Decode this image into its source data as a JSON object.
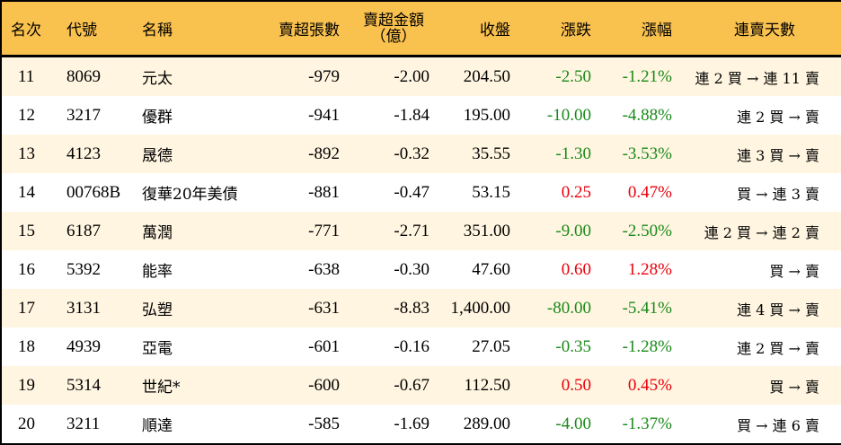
{
  "colors": {
    "header_bg": "#F9C14E",
    "row_odd_bg": "#FFF5E0",
    "row_even_bg": "#FFFFFF",
    "up": "#E8000B",
    "down": "#1A8A1A"
  },
  "header": {
    "rank": "名次",
    "code": "代號",
    "name": "名稱",
    "net_sell_lots": "賣超張數",
    "net_sell_amount_line1": "賣超金額",
    "net_sell_amount_line2": "（億）",
    "close": "收盤",
    "change": "漲跌",
    "change_pct": "漲幅",
    "streak": "連賣天數"
  },
  "rows": [
    {
      "rank": "11",
      "code": "8069",
      "name": "元太",
      "lots": "-979",
      "amount": "-2.00",
      "close": "204.50",
      "change": "-2.50",
      "pct": "-1.21%",
      "dir": "down",
      "streak": "連 2 買 → 連 11 賣"
    },
    {
      "rank": "12",
      "code": "3217",
      "name": "優群",
      "lots": "-941",
      "amount": "-1.84",
      "close": "195.00",
      "change": "-10.00",
      "pct": "-4.88%",
      "dir": "down",
      "streak": "連 2 買 → 賣"
    },
    {
      "rank": "13",
      "code": "4123",
      "name": "晟德",
      "lots": "-892",
      "amount": "-0.32",
      "close": "35.55",
      "change": "-1.30",
      "pct": "-3.53%",
      "dir": "down",
      "streak": "連 3 買 → 賣"
    },
    {
      "rank": "14",
      "code": "00768B",
      "name": "復華20年美債",
      "lots": "-881",
      "amount": "-0.47",
      "close": "53.15",
      "change": "0.25",
      "pct": "0.47%",
      "dir": "up",
      "streak": "買 → 連 3 賣"
    },
    {
      "rank": "15",
      "code": "6187",
      "name": "萬潤",
      "lots": "-771",
      "amount": "-2.71",
      "close": "351.00",
      "change": "-9.00",
      "pct": "-2.50%",
      "dir": "down",
      "streak": "連 2 買 → 連 2 賣"
    },
    {
      "rank": "16",
      "code": "5392",
      "name": "能率",
      "lots": "-638",
      "amount": "-0.30",
      "close": "47.60",
      "change": "0.60",
      "pct": "1.28%",
      "dir": "up",
      "streak": "買 → 賣"
    },
    {
      "rank": "17",
      "code": "3131",
      "name": "弘塑",
      "lots": "-631",
      "amount": "-8.83",
      "close": "1,400.00",
      "change": "-80.00",
      "pct": "-5.41%",
      "dir": "down",
      "streak": "連 4 買 → 賣"
    },
    {
      "rank": "18",
      "code": "4939",
      "name": "亞電",
      "lots": "-601",
      "amount": "-0.16",
      "close": "27.05",
      "change": "-0.35",
      "pct": "-1.28%",
      "dir": "down",
      "streak": "連 2 買 → 賣"
    },
    {
      "rank": "19",
      "code": "5314",
      "name": "世紀*",
      "lots": "-600",
      "amount": "-0.67",
      "close": "112.50",
      "change": "0.50",
      "pct": "0.45%",
      "dir": "up",
      "streak": "買 → 賣"
    },
    {
      "rank": "20",
      "code": "3211",
      "name": "順達",
      "lots": "-585",
      "amount": "-1.69",
      "close": "289.00",
      "change": "-4.00",
      "pct": "-1.37%",
      "dir": "down",
      "streak": "買 → 連 6 賣"
    }
  ]
}
